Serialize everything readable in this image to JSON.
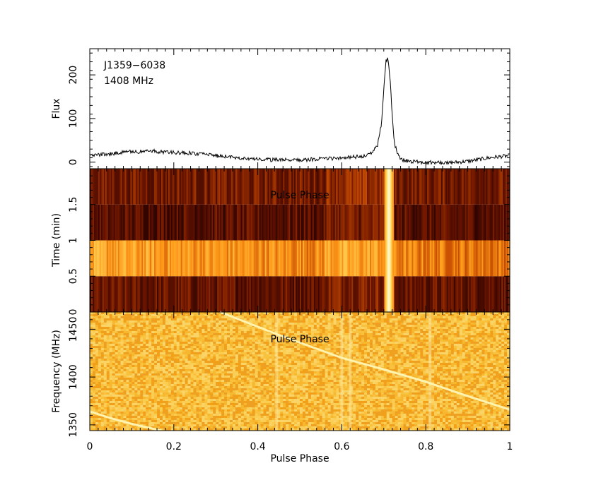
{
  "chart_data": [
    {
      "type": "line",
      "panel": "profile",
      "annotation_lines": [
        "J1359−6038",
        "1408 MHz"
      ],
      "ylabel": "Flux",
      "xlim": [
        0,
        1
      ],
      "ylim": [
        -15,
        260
      ],
      "y_ticks": [
        0,
        100,
        200
      ],
      "y_tick_labels": [
        "0",
        "100",
        "200"
      ],
      "series": [
        {
          "x": [
            0,
            0.05,
            0.1,
            0.15,
            0.2,
            0.25,
            0.3,
            0.35,
            0.4,
            0.45,
            0.5,
            0.55,
            0.6,
            0.65,
            0.67,
            0.685,
            0.695,
            0.7,
            0.705,
            0.71,
            0.715,
            0.72,
            0.725,
            0.735,
            0.75,
            0.8,
            0.85,
            0.9,
            0.95,
            1.0
          ],
          "y": [
            16,
            19,
            24,
            25,
            22,
            20,
            15,
            11,
            6,
            5,
            5,
            7,
            10,
            13,
            20,
            38,
            90,
            170,
            232,
            238,
            190,
            110,
            45,
            12,
            3,
            0,
            -2,
            2,
            10,
            15
          ]
        }
      ]
    },
    {
      "type": "heatmap",
      "panel": "time-phase",
      "ylabel": "Time (min)",
      "overlay_label": "Pulse Phase",
      "xlim": [
        0,
        1
      ],
      "ylim": [
        0,
        2
      ],
      "y_ticks": [
        0,
        0.5,
        1,
        1.5
      ],
      "y_tick_labels": [
        "0",
        "0.5",
        "1",
        "1.5"
      ],
      "sub_integration_edges": [
        0,
        0.5,
        1.0,
        1.5,
        2.0
      ],
      "sub_integration_mean_level": [
        0.18,
        0.62,
        0.15,
        0.22
      ],
      "pulse_phase_center": 0.712,
      "pulse_phase_width": 0.022,
      "colormap": [
        "#200000",
        "#6a1400",
        "#c34a00",
        "#ff9a1a",
        "#ffe066",
        "#fffbe8"
      ]
    },
    {
      "type": "heatmap",
      "panel": "frequency-phase",
      "ylabel": "Frequency (MHz)",
      "overlay_label": "Pulse Phase",
      "xlabel": "Pulse Phase",
      "xlim": [
        0,
        1
      ],
      "ylim": [
        1344,
        1468
      ],
      "x_ticks": [
        0,
        0.2,
        0.4,
        0.6,
        0.8,
        1
      ],
      "x_tick_labels": [
        "0",
        "0.2",
        "0.4",
        "0.6",
        "0.8",
        "1"
      ],
      "y_ticks": [
        1350,
        1400,
        1450
      ],
      "y_tick_labels": [
        "1350",
        "1400",
        "1450"
      ],
      "background_colors": [
        "#f2a019",
        "#f7b830",
        "#fbcd52",
        "#f8c13e",
        "#eea023",
        "#fad466"
      ],
      "dispersed_sweep_1": {
        "x": [
          0.31,
          0.45,
          0.6,
          0.7,
          0.8,
          0.9,
          1.0
        ],
        "y": [
          1468,
          1444,
          1420,
          1408,
          1395,
          1380,
          1366
        ]
      },
      "dispersed_sweep_2": {
        "x": [
          0.0,
          0.05,
          0.1,
          0.15,
          0.17
        ],
        "y": [
          1364,
          1357,
          1351,
          1346,
          1344
        ]
      },
      "vertical_interference_phases": [
        0.445,
        0.6,
        0.62,
        0.81
      ]
    }
  ]
}
